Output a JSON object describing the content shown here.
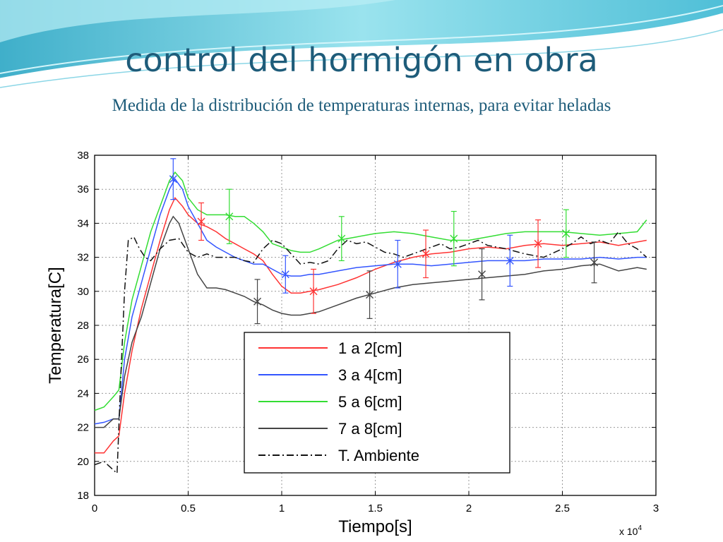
{
  "slide": {
    "title": "control del hormigón en obra",
    "subtitle": "Medida de la distribución de temperaturas internas, para evitar heladas",
    "colors": {
      "title": "#1e5c7a",
      "banner": "#6fd0e0"
    }
  },
  "chart_data": {
    "type": "line",
    "xlabel": "Tiempo[s]",
    "ylabel": "Temperatura[C]",
    "x_multiplier_label": "x 10",
    "x_multiplier_exponent": "4",
    "xlim": [
      0,
      3
    ],
    "ylim": [
      18,
      38
    ],
    "xticks": [
      0,
      0.5,
      1,
      1.5,
      2,
      2.5,
      3
    ],
    "xtick_labels": [
      "0",
      "0.5",
      "1",
      "1.5",
      "2",
      "2.5",
      "3"
    ],
    "yticks": [
      18,
      20,
      22,
      24,
      26,
      28,
      30,
      32,
      34,
      36,
      38
    ],
    "ytick_labels": [
      "18",
      "20",
      "22",
      "24",
      "26",
      "28",
      "30",
      "32",
      "34",
      "36",
      "38"
    ],
    "grid": true,
    "legend_position": "lower-center",
    "series": [
      {
        "name": "1 a 2[cm]",
        "color": "#ff3333",
        "dash": "solid",
        "points": [
          [
            0,
            20.5
          ],
          [
            0.05,
            20.5
          ],
          [
            0.1,
            21.2
          ],
          [
            0.13,
            21.5
          ],
          [
            0.16,
            24
          ],
          [
            0.2,
            26.5
          ],
          [
            0.25,
            29
          ],
          [
            0.3,
            31
          ],
          [
            0.35,
            33
          ],
          [
            0.4,
            34.8
          ],
          [
            0.43,
            35.5
          ],
          [
            0.47,
            35
          ],
          [
            0.5,
            34.5
          ],
          [
            0.55,
            34
          ],
          [
            0.6,
            33.8
          ],
          [
            0.65,
            33.5
          ],
          [
            0.7,
            33.1
          ],
          [
            0.75,
            32.8
          ],
          [
            0.8,
            32.5
          ],
          [
            0.85,
            32.2
          ],
          [
            0.9,
            31.8
          ],
          [
            0.95,
            31
          ],
          [
            1,
            30.3
          ],
          [
            1.05,
            29.9
          ],
          [
            1.1,
            29.9
          ],
          [
            1.15,
            30
          ],
          [
            1.2,
            30.1
          ],
          [
            1.3,
            30.4
          ],
          [
            1.4,
            30.8
          ],
          [
            1.5,
            31.3
          ],
          [
            1.6,
            31.7
          ],
          [
            1.7,
            32
          ],
          [
            1.8,
            32.2
          ],
          [
            1.9,
            32.3
          ],
          [
            2,
            32.5
          ],
          [
            2.1,
            32.6
          ],
          [
            2.2,
            32.5
          ],
          [
            2.3,
            32.7
          ],
          [
            2.4,
            32.8
          ],
          [
            2.5,
            32.7
          ],
          [
            2.6,
            32.8
          ],
          [
            2.7,
            32.9
          ],
          [
            2.8,
            32.7
          ],
          [
            2.9,
            32.9
          ],
          [
            2.95,
            33
          ]
        ]
      },
      {
        "name": "3 a 4[cm]",
        "color": "#3355ff",
        "dash": "solid",
        "points": [
          [
            0,
            22.2
          ],
          [
            0.05,
            22.3
          ],
          [
            0.1,
            22.5
          ],
          [
            0.13,
            22.5
          ],
          [
            0.16,
            26
          ],
          [
            0.2,
            28.5
          ],
          [
            0.25,
            30.5
          ],
          [
            0.3,
            32.5
          ],
          [
            0.35,
            34.5
          ],
          [
            0.4,
            36
          ],
          [
            0.43,
            36.6
          ],
          [
            0.47,
            36
          ],
          [
            0.5,
            35
          ],
          [
            0.55,
            34
          ],
          [
            0.6,
            33
          ],
          [
            0.65,
            32.6
          ],
          [
            0.7,
            32.3
          ],
          [
            0.75,
            32
          ],
          [
            0.8,
            31.8
          ],
          [
            0.85,
            31.6
          ],
          [
            0.9,
            31.6
          ],
          [
            0.95,
            31.3
          ],
          [
            1,
            31
          ],
          [
            1.05,
            30.9
          ],
          [
            1.1,
            30.9
          ],
          [
            1.15,
            31
          ],
          [
            1.2,
            31
          ],
          [
            1.3,
            31.2
          ],
          [
            1.4,
            31.4
          ],
          [
            1.5,
            31.5
          ],
          [
            1.6,
            31.6
          ],
          [
            1.7,
            31.6
          ],
          [
            1.8,
            31.5
          ],
          [
            1.9,
            31.6
          ],
          [
            2,
            31.7
          ],
          [
            2.1,
            31.8
          ],
          [
            2.2,
            31.8
          ],
          [
            2.3,
            31.8
          ],
          [
            2.4,
            31.9
          ],
          [
            2.5,
            31.9
          ],
          [
            2.6,
            31.9
          ],
          [
            2.7,
            32
          ],
          [
            2.8,
            31.9
          ],
          [
            2.9,
            32
          ],
          [
            2.95,
            32
          ]
        ]
      },
      {
        "name": "5 a 6[cm]",
        "color": "#33dd33",
        "dash": "solid",
        "points": [
          [
            0,
            23
          ],
          [
            0.05,
            23.2
          ],
          [
            0.1,
            23.8
          ],
          [
            0.13,
            24.2
          ],
          [
            0.16,
            27
          ],
          [
            0.2,
            29.5
          ],
          [
            0.25,
            31.5
          ],
          [
            0.3,
            33.5
          ],
          [
            0.35,
            35
          ],
          [
            0.4,
            36.5
          ],
          [
            0.43,
            37
          ],
          [
            0.47,
            36.5
          ],
          [
            0.5,
            35.5
          ],
          [
            0.55,
            34.8
          ],
          [
            0.6,
            34.5
          ],
          [
            0.65,
            34.5
          ],
          [
            0.7,
            34.5
          ],
          [
            0.75,
            34.4
          ],
          [
            0.8,
            34.4
          ],
          [
            0.85,
            34
          ],
          [
            0.9,
            33.5
          ],
          [
            0.95,
            32.8
          ],
          [
            1,
            32.6
          ],
          [
            1.05,
            32.4
          ],
          [
            1.1,
            32.3
          ],
          [
            1.15,
            32.3
          ],
          [
            1.2,
            32.5
          ],
          [
            1.3,
            33
          ],
          [
            1.4,
            33.2
          ],
          [
            1.5,
            33.4
          ],
          [
            1.6,
            33.5
          ],
          [
            1.7,
            33.4
          ],
          [
            1.8,
            33.2
          ],
          [
            1.9,
            33
          ],
          [
            2,
            33
          ],
          [
            2.1,
            33.2
          ],
          [
            2.2,
            33.4
          ],
          [
            2.3,
            33.5
          ],
          [
            2.4,
            33.5
          ],
          [
            2.5,
            33.5
          ],
          [
            2.6,
            33.4
          ],
          [
            2.7,
            33.3
          ],
          [
            2.8,
            33.4
          ],
          [
            2.9,
            33.5
          ],
          [
            2.95,
            34.2
          ]
        ]
      },
      {
        "name": "7 a 8[cm]",
        "color": "#444444",
        "dash": "solid",
        "points": [
          [
            0,
            22
          ],
          [
            0.05,
            22
          ],
          [
            0.1,
            22.5
          ],
          [
            0.13,
            22.5
          ],
          [
            0.16,
            25
          ],
          [
            0.2,
            27
          ],
          [
            0.25,
            28.5
          ],
          [
            0.3,
            30.5
          ],
          [
            0.35,
            32.5
          ],
          [
            0.4,
            34
          ],
          [
            0.42,
            34.4
          ],
          [
            0.45,
            34
          ],
          [
            0.5,
            32.5
          ],
          [
            0.55,
            31
          ],
          [
            0.6,
            30.2
          ],
          [
            0.65,
            30.2
          ],
          [
            0.7,
            30.1
          ],
          [
            0.75,
            29.9
          ],
          [
            0.8,
            29.7
          ],
          [
            0.85,
            29.4
          ],
          [
            0.9,
            29.2
          ],
          [
            0.95,
            28.9
          ],
          [
            1,
            28.7
          ],
          [
            1.05,
            28.6
          ],
          [
            1.1,
            28.6
          ],
          [
            1.15,
            28.7
          ],
          [
            1.2,
            28.8
          ],
          [
            1.3,
            29.2
          ],
          [
            1.4,
            29.6
          ],
          [
            1.5,
            29.9
          ],
          [
            1.6,
            30.2
          ],
          [
            1.7,
            30.4
          ],
          [
            1.8,
            30.5
          ],
          [
            1.9,
            30.6
          ],
          [
            2,
            30.7
          ],
          [
            2.1,
            30.8
          ],
          [
            2.2,
            30.9
          ],
          [
            2.3,
            31
          ],
          [
            2.4,
            31.2
          ],
          [
            2.5,
            31.3
          ],
          [
            2.6,
            31.5
          ],
          [
            2.7,
            31.6
          ],
          [
            2.8,
            31.2
          ],
          [
            2.9,
            31.4
          ],
          [
            2.95,
            31.3
          ]
        ]
      },
      {
        "name": "T. Ambiente",
        "color": "#111111",
        "dash": "dashdot",
        "points": [
          [
            0,
            19.8
          ],
          [
            0.05,
            20
          ],
          [
            0.1,
            19.5
          ],
          [
            0.12,
            19.3
          ],
          [
            0.14,
            25
          ],
          [
            0.16,
            30
          ],
          [
            0.18,
            33
          ],
          [
            0.21,
            33.2
          ],
          [
            0.24,
            32.5
          ],
          [
            0.27,
            32
          ],
          [
            0.3,
            31.8
          ],
          [
            0.35,
            32.5
          ],
          [
            0.4,
            33
          ],
          [
            0.45,
            33.1
          ],
          [
            0.5,
            32.3
          ],
          [
            0.55,
            32
          ],
          [
            0.6,
            32.2
          ],
          [
            0.65,
            32
          ],
          [
            0.7,
            32
          ],
          [
            0.75,
            32
          ],
          [
            0.8,
            31.8
          ],
          [
            0.85,
            31.7
          ],
          [
            0.9,
            32.5
          ],
          [
            0.95,
            33
          ],
          [
            1,
            32.8
          ],
          [
            1.05,
            32.2
          ],
          [
            1.1,
            31.6
          ],
          [
            1.15,
            31.7
          ],
          [
            1.2,
            31.6
          ],
          [
            1.25,
            31.8
          ],
          [
            1.3,
            32.5
          ],
          [
            1.35,
            33
          ],
          [
            1.4,
            32.8
          ],
          [
            1.45,
            32.9
          ],
          [
            1.5,
            32.6
          ],
          [
            1.55,
            32.3
          ],
          [
            1.6,
            32.2
          ],
          [
            1.65,
            32
          ],
          [
            1.7,
            32.2
          ],
          [
            1.75,
            32.4
          ],
          [
            1.8,
            32.6
          ],
          [
            1.85,
            32.8
          ],
          [
            1.9,
            32.5
          ],
          [
            1.95,
            32.6
          ],
          [
            2,
            32.8
          ],
          [
            2.05,
            33
          ],
          [
            2.1,
            32.7
          ],
          [
            2.2,
            32.5
          ],
          [
            2.3,
            32.2
          ],
          [
            2.4,
            32
          ],
          [
            2.5,
            32.5
          ],
          [
            2.55,
            32.8
          ],
          [
            2.6,
            33.2
          ],
          [
            2.65,
            32.8
          ],
          [
            2.7,
            33
          ],
          [
            2.75,
            32.8
          ],
          [
            2.8,
            33.5
          ],
          [
            2.85,
            32.8
          ],
          [
            2.9,
            32.5
          ],
          [
            2.95,
            32
          ]
        ]
      }
    ],
    "error_bars": [
      {
        "series": 0,
        "points": [
          [
            0.57,
            34.1,
            1.1
          ],
          [
            1.17,
            30,
            1.3
          ],
          [
            1.77,
            32.2,
            1.4
          ],
          [
            2.37,
            32.8,
            1.4
          ]
        ]
      },
      {
        "series": 1,
        "points": [
          [
            0.42,
            36.6,
            1.2
          ],
          [
            1.02,
            31,
            1.1
          ],
          [
            1.62,
            31.6,
            1.4
          ],
          [
            2.22,
            31.8,
            1.5
          ]
        ]
      },
      {
        "series": 2,
        "points": [
          [
            0.72,
            34.4,
            1.6
          ],
          [
            1.32,
            33.1,
            1.3
          ],
          [
            1.92,
            33.1,
            1.6
          ],
          [
            2.52,
            33.4,
            1.4
          ]
        ]
      },
      {
        "series": 3,
        "points": [
          [
            0.87,
            29.4,
            1.3
          ],
          [
            1.47,
            29.8,
            1.4
          ],
          [
            2.07,
            31,
            1.5
          ],
          [
            2.67,
            31.7,
            1.2
          ]
        ]
      }
    ]
  }
}
